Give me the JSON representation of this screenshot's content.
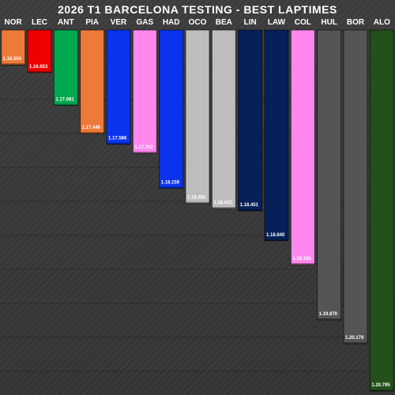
{
  "chart_data": {
    "type": "bar",
    "title": "2026 T1 BARCELONA TESTING - BEST LAPTIMES",
    "categories": [
      "NOR",
      "LEC",
      "ANT",
      "PIA",
      "VER",
      "GAS",
      "HAD",
      "OCO",
      "BEA",
      "LIN",
      "LAW",
      "COL",
      "HUL",
      "BOR",
      "ALO"
    ],
    "labels": [
      "1.16.554",
      "1.16.653",
      "1.17.081",
      "1.17.446",
      "1.17.586",
      "1.17.702",
      "1.18.159",
      "1.18.355",
      "1.18.422",
      "1.18.451",
      "1.18.840",
      "1.19.150",
      "1.19.870",
      "1.20.179",
      "1.20.795"
    ],
    "values": [
      76.554,
      76.653,
      77.081,
      77.446,
      77.586,
      77.702,
      78.159,
      78.355,
      78.422,
      78.451,
      78.84,
      79.15,
      79.87,
      80.179,
      80.795
    ],
    "colors": [
      "#ee7a39",
      "#ee0000",
      "#00a84f",
      "#ee7a39",
      "#0a33ee",
      "#ff87ee",
      "#0a33ee",
      "#bdbdbd",
      "#bdbdbd",
      "#06205a",
      "#06205a",
      "#ff87ee",
      "#555555",
      "#555555",
      "#245019"
    ],
    "ylim": [
      76.1,
      80.845
    ],
    "grid": true,
    "legend": "none",
    "xlabel": "",
    "ylabel": ""
  }
}
